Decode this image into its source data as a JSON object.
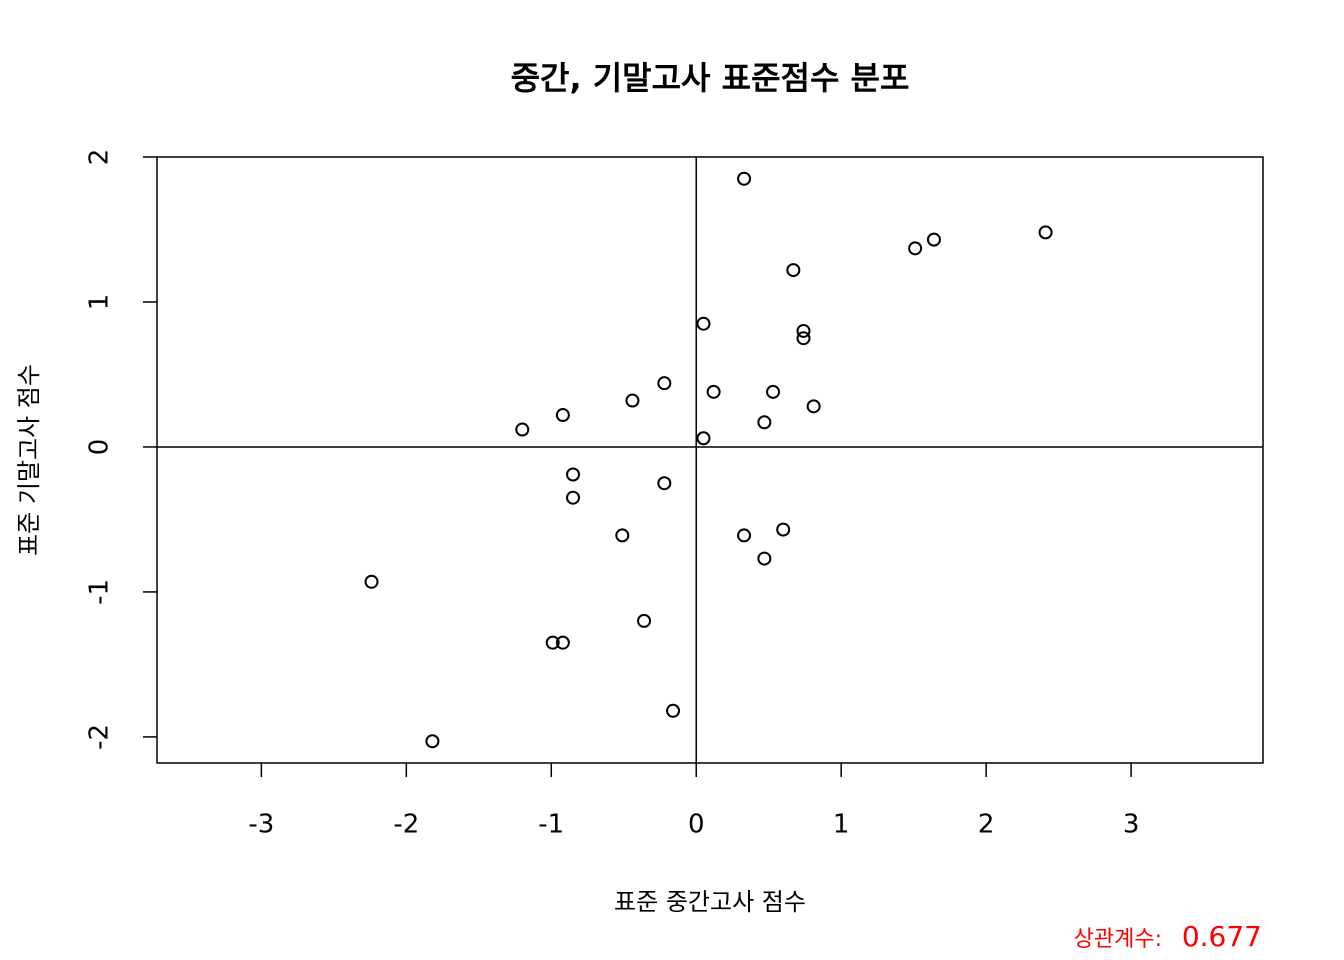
{
  "chart_data": {
    "type": "scatter",
    "title": "중간, 기말고사 표준점수 분포",
    "xlabel": "표준 중간고사 점수",
    "ylabel": "표준 기말고사 점수",
    "x": [
      0.33,
      2.41,
      1.64,
      1.51,
      0.67,
      0.05,
      0.74,
      0.74,
      -0.22,
      0.12,
      0.53,
      -0.44,
      0.81,
      -0.92,
      0.47,
      -1.2,
      0.05,
      -0.85,
      -0.22,
      -0.85,
      0.6,
      -0.51,
      0.33,
      0.47,
      -2.24,
      -0.36,
      -0.99,
      -0.92,
      -0.16,
      -1.82
    ],
    "y": [
      1.85,
      1.48,
      1.43,
      1.37,
      1.22,
      0.85,
      0.8,
      0.75,
      0.44,
      0.38,
      0.38,
      0.32,
      0.28,
      0.22,
      0.17,
      0.12,
      0.06,
      -0.19,
      -0.25,
      -0.35,
      -0.57,
      -0.61,
      -0.61,
      -0.77,
      -0.93,
      -1.2,
      -1.35,
      -1.35,
      -1.82,
      -2.03
    ],
    "color": "#000000",
    "xlim": [
      -3.72,
      3.91
    ],
    "ylim": [
      -2.18,
      2.0
    ],
    "xticks": [
      -3,
      -2,
      -1,
      0,
      1,
      2,
      3
    ],
    "yticks": [
      -2,
      -1,
      0,
      1,
      2
    ],
    "reference_lines": {
      "x": 0,
      "y": 0
    },
    "annotation": {
      "label": "상관계수:",
      "value": 0.677,
      "color": "#ff0000"
    }
  }
}
